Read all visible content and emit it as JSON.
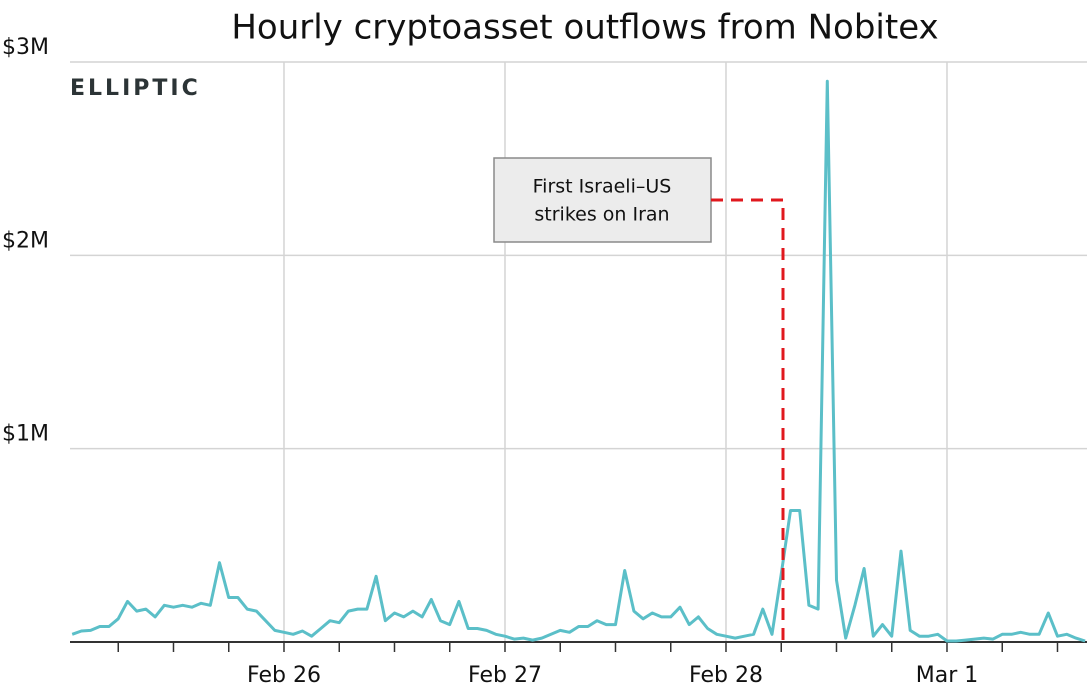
{
  "chart_data": {
    "type": "line",
    "title": "Hourly cryptoasset outflows from Nobitex",
    "logo": "ELLIPTIC",
    "annotation": [
      "First Israeli–US",
      "strikes on Iran"
    ],
    "categories": [
      null,
      null,
      null,
      null,
      null,
      null,
      null,
      null,
      null,
      null,
      null,
      null,
      null,
      null,
      null,
      null,
      null,
      null,
      null,
      null,
      null,
      null,
      null,
      "Feb 26",
      null,
      null,
      null,
      null,
      null,
      null,
      null,
      null,
      null,
      null,
      null,
      null,
      null,
      null,
      null,
      null,
      null,
      null,
      null,
      null,
      null,
      null,
      null,
      "Feb 27",
      null,
      null,
      null,
      null,
      null,
      null,
      null,
      null,
      null,
      null,
      null,
      null,
      null,
      null,
      null,
      null,
      null,
      null,
      null,
      null,
      null,
      null,
      null,
      "Feb 28",
      null,
      null,
      null,
      null,
      null,
      null,
      null,
      null,
      null,
      null,
      null,
      null,
      null,
      null,
      null,
      null,
      null,
      null,
      null,
      null,
      null,
      null,
      null,
      "Mar 1",
      null,
      null,
      null,
      null,
      null,
      null,
      null,
      null,
      null,
      null,
      null,
      null,
      null,
      null,
      null
    ],
    "values": [
      40000,
      57000,
      60000,
      80000,
      80000,
      120000,
      210000,
      160000,
      170000,
      130000,
      190000,
      180000,
      190000,
      180000,
      200000,
      190000,
      410000,
      230000,
      230000,
      170000,
      160000,
      110000,
      60000,
      50000,
      40000,
      57000,
      30000,
      70000,
      110000,
      100000,
      160000,
      170000,
      170000,
      340000,
      110000,
      150000,
      130000,
      160000,
      130000,
      220000,
      110000,
      90000,
      210000,
      70000,
      70000,
      60000,
      40000,
      30000,
      15000,
      20000,
      10000,
      20000,
      40000,
      60000,
      50000,
      80000,
      80000,
      110000,
      90000,
      90000,
      370000,
      160000,
      120000,
      150000,
      130000,
      130000,
      180000,
      90000,
      130000,
      70000,
      40000,
      30000,
      20000,
      30000,
      40000,
      170000,
      40000,
      350000,
      680000,
      680000,
      190000,
      170000,
      2900000,
      320000,
      20000,
      190000,
      380000,
      30000,
      90000,
      30000,
      470000,
      60000,
      30000,
      30000,
      40000,
      5000,
      5000,
      10000,
      15000,
      20000,
      15000,
      40000,
      40000,
      50000,
      40000,
      40000,
      150000,
      30000,
      40000,
      20000,
      5000
    ],
    "color": "#5bbfc8",
    "ylim": [
      0,
      3000000
    ],
    "yticks": [
      {
        "value": 1000000,
        "label": "$1M"
      },
      {
        "value": 2000000,
        "label": "$2M"
      },
      {
        "value": 3000000,
        "label": "$3M"
      }
    ],
    "grid": true
  }
}
